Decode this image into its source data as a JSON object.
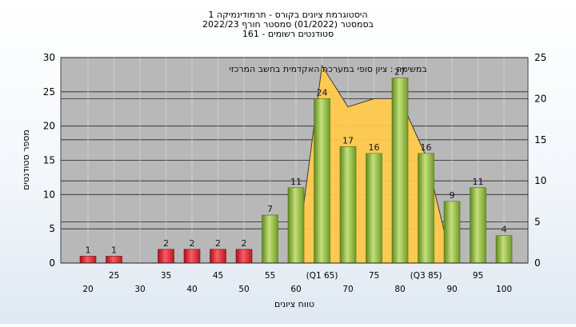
{
  "chart_data": {
    "type": "bar",
    "title_lines": [
      "היסטוגרמת ציונים בקורס - תרמודינמיקה 1",
      "בסמסטר  (01/2022)  סמסטר חורף  2022/23",
      "סטודנטים רשומים - 161"
    ],
    "annotation": "במשימה : ציון סופי במערכת האקדמית בחשב המרכזי",
    "xlabel": "טווח ציונים",
    "ylabel": "מספר סטודנטים",
    "ylim": [
      0,
      30
    ],
    "y_ticks": [
      0,
      5,
      10,
      15,
      20,
      25,
      30
    ],
    "y2lim": [
      0,
      25
    ],
    "y2_ticks": [
      0,
      5,
      10,
      15,
      20,
      25
    ],
    "x_tick_labels_lower": [
      "20",
      "30",
      "40",
      "50",
      "60",
      "70",
      "80",
      "90",
      "100"
    ],
    "x_tick_labels_upper": [
      "25",
      "35",
      "45",
      "55",
      "(Q1 65)",
      "75",
      "(Q3 85)",
      "95"
    ],
    "categories": [
      "20",
      "25",
      "30",
      "35",
      "40",
      "45",
      "50",
      "55",
      "60",
      "65",
      "70",
      "75",
      "80",
      "85",
      "90",
      "95",
      "100"
    ],
    "values": [
      1,
      1,
      0,
      2,
      2,
      2,
      2,
      7,
      11,
      24,
      17,
      16,
      27,
      16,
      9,
      11,
      4
    ],
    "bar_colors": {
      "failing": "#d9252f",
      "passing": "#8fb83a"
    },
    "passing_from": "55",
    "area_series": {
      "categories": [
        "60",
        "65",
        "70",
        "75",
        "80",
        "85",
        "90"
      ],
      "values": [
        0,
        24,
        19,
        20,
        20,
        13,
        0
      ],
      "color": "#ffc94d"
    },
    "grid": true
  }
}
